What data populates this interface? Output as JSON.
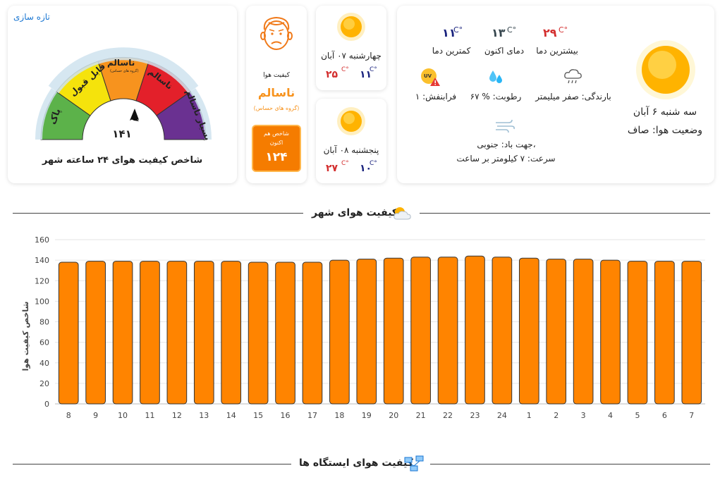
{
  "gauge_card": {
    "refresh": "تازه سازی",
    "value": "۱۴۱",
    "title": "شاخص کیفیت هوای ۲۴ ساعته شهر",
    "segments": [
      "پاک",
      "قابل قبول",
      "ناسالم",
      "ناسالم",
      "بسیار ناسالم"
    ],
    "segment_sub": "(گروه های حساس)"
  },
  "aqi_card": {
    "label": "کیفیت هوا",
    "status": "ناسالم",
    "sub": "(گروه های حساس)",
    "now_label_1": "شاخص هم",
    "now_label_2": "اکنون",
    "now_value": "۱۲۴"
  },
  "forecast": [
    {
      "day": "چهارشنبه ۰۷ آبان",
      "max": "۲۵",
      "min": "۱۱",
      "unit": "C°"
    },
    {
      "day": "پنجشنبه ۰۸ آبان",
      "max": "۲۷",
      "min": "۱۰",
      "unit": "C°"
    }
  ],
  "today": {
    "max_value": "۲۹",
    "max_label": "بیشترین دما",
    "now_value": "۱۳",
    "now_label": "دمای اکنون",
    "min_value": "۱۱",
    "min_label": "کمترین دما",
    "unit": "C°",
    "rain": "بارندگی: صفر میلیمتر",
    "humidity": "رطوبت: % ۶۷",
    "uv": "فرابنفش: ۱",
    "uv_badge": "UV",
    "wind_dir": "جهت باد: جنوبی،",
    "wind_speed": "سرعت: ۷ کیلومتر بر ساعت",
    "date": "سه شنبه ۶ آبان",
    "condition": "وضعیت هوا: صاف"
  },
  "section_city": "کیفیت هوای شهر",
  "section_stations": "کیفیت هوای ایستگاه ها",
  "colors": {
    "bar": "#ff8400",
    "good": "#5cb24a",
    "moderate": "#f5e30c",
    "sensitive": "#f7931e",
    "unhealthy": "#e3202a",
    "very_unhealthy": "#6a3191"
  },
  "chart_data": {
    "type": "bar",
    "categories": [
      "8",
      "9",
      "10",
      "11",
      "12",
      "13",
      "14",
      "15",
      "16",
      "17",
      "18",
      "19",
      "20",
      "21",
      "22",
      "23",
      "24",
      "1",
      "2",
      "3",
      "4",
      "5",
      "6",
      "7"
    ],
    "values": [
      138,
      139,
      139,
      139,
      139,
      139,
      139,
      138,
      138,
      138,
      140,
      141,
      142,
      143,
      143,
      144,
      143,
      142,
      141,
      141,
      140,
      139,
      139,
      139
    ],
    "ylabel": "شاخص کیفیت هوا",
    "ylim": [
      0,
      160
    ],
    "yticks": [
      0,
      20,
      40,
      60,
      80,
      100,
      120,
      140,
      160
    ],
    "grid": true
  }
}
